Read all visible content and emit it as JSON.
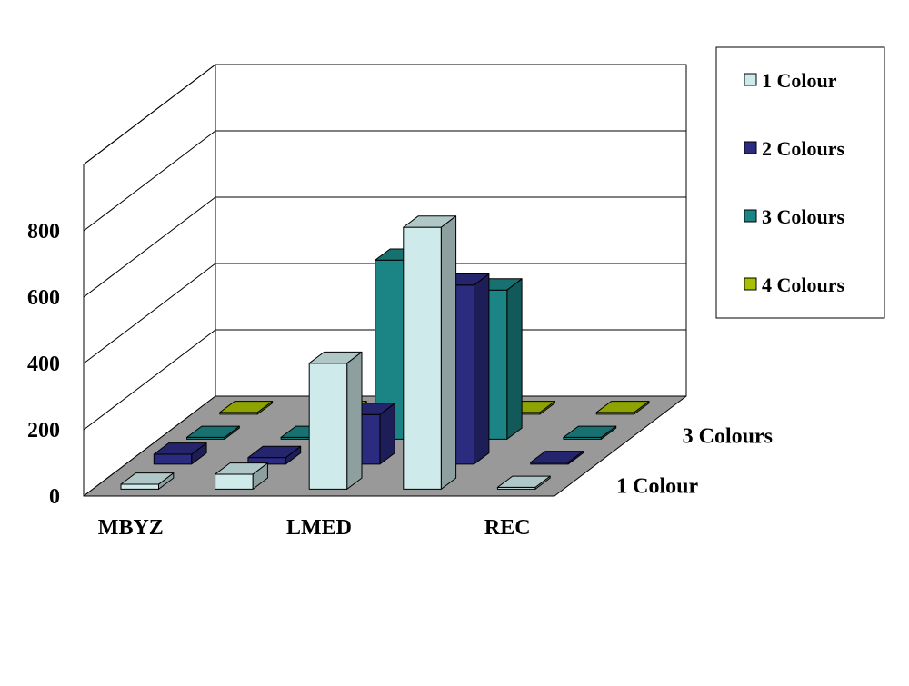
{
  "chart_data": {
    "type": "bar",
    "projection": "3d-clustered-depth",
    "title": "",
    "xlabel": "",
    "ylabel": "",
    "categories": [
      "MBYZ",
      "",
      "LMED",
      "",
      "REC"
    ],
    "series": [
      {
        "name": "1 Colour",
        "values": [
          15,
          45,
          380,
          790,
          0
        ],
        "color": "#cfeaea"
      },
      {
        "name": "2 Colours",
        "values": [
          30,
          20,
          150,
          540,
          0
        ],
        "color": "#2b2b80"
      },
      {
        "name": "3 Colours",
        "values": [
          0,
          0,
          540,
          450,
          0
        ],
        "color": "#1b8585"
      },
      {
        "name": "4 Colours",
        "values": [
          0,
          0,
          0,
          0,
          0
        ],
        "color": "#a8c000"
      }
    ],
    "depth_labels": [
      "1 Colour",
      "",
      "3 Colours",
      ""
    ],
    "yticks": [
      0,
      200,
      400,
      600,
      800
    ],
    "ylim": [
      0,
      1000
    ],
    "grid": true,
    "legend": "top-right",
    "floor_color": "#999999"
  }
}
